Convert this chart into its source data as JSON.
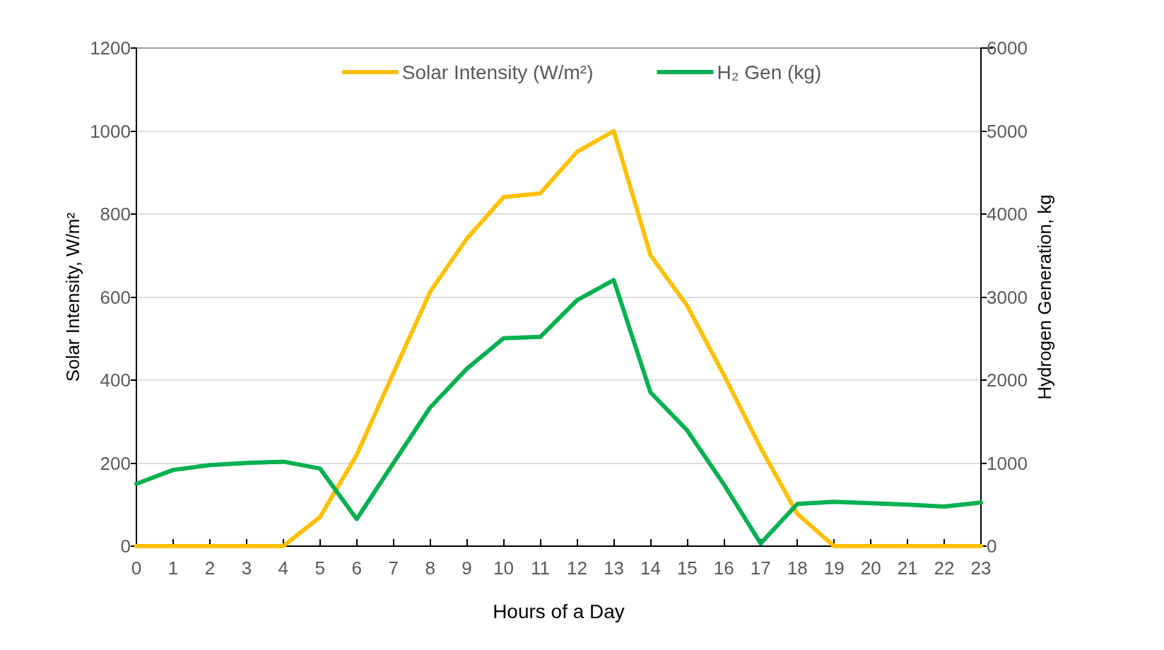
{
  "chart_data": {
    "type": "line",
    "xlabel": "Hours of a Day",
    "ylabel": "Solar Intensity, W/m²",
    "y2label": "Hydrogen Generation, kg",
    "x": [
      0,
      1,
      2,
      3,
      4,
      5,
      6,
      7,
      8,
      9,
      10,
      11,
      12,
      13,
      14,
      15,
      16,
      17,
      18,
      19,
      20,
      21,
      22,
      23
    ],
    "xlim": [
      0,
      23
    ],
    "xticks": [
      0,
      1,
      2,
      3,
      4,
      5,
      6,
      7,
      8,
      9,
      10,
      11,
      12,
      13,
      14,
      15,
      16,
      17,
      18,
      19,
      20,
      21,
      22,
      23
    ],
    "ylim": [
      0,
      1200
    ],
    "yticks": [
      0,
      200,
      400,
      600,
      800,
      1000,
      1200
    ],
    "y2lim": [
      0,
      6000
    ],
    "y2ticks": [
      0,
      1000,
      2000,
      3000,
      4000,
      5000,
      6000
    ],
    "series": [
      {
        "name": "Solar Intensity (W/m²)",
        "color": "#ffc000",
        "values": [
          0,
          0,
          0,
          0,
          0,
          70,
          220,
          417,
          613,
          741,
          841,
          850,
          950,
          1000,
          701,
          579,
          412,
          237,
          78,
          0,
          0,
          0,
          0,
          0
        ]
      },
      {
        "name": "H₂ Gen (kg)",
        "color": "#00b050",
        "axis": "y2",
        "values": [
          751,
          918,
          977,
          1002,
          1018,
          935,
          326,
          1000,
          1670,
          2137,
          2504,
          2521,
          2963,
          3205,
          1853,
          1394,
          743,
          33,
          509,
          534,
          518,
          500,
          476,
          526
        ]
      }
    ],
    "grid": "y",
    "legend": "top",
    "marker": "none",
    "line_style": "solid"
  }
}
